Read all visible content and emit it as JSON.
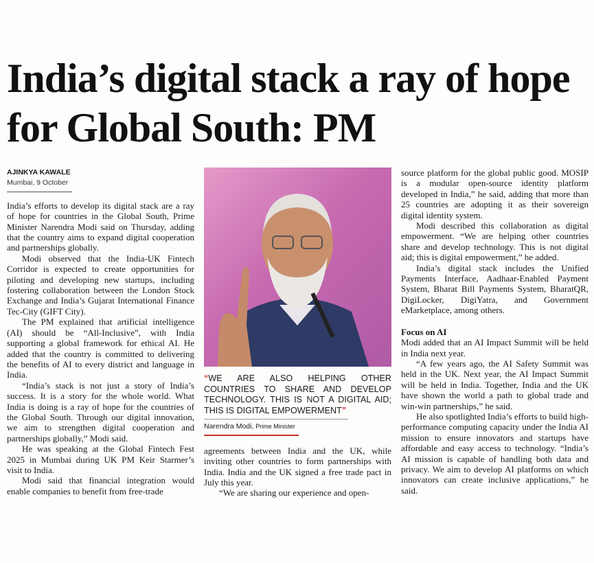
{
  "headline": "India’s digital stack a ray of hope for Global South: PM",
  "byline": {
    "author": "AJINKYA KAWALE",
    "dateline": "Mumbai, 9 October"
  },
  "photo": {
    "subject": "Narendra Modi speaking",
    "background_color": "#d27ab8"
  },
  "pull_quote": {
    "text": "WE ARE ALSO HELPING OTHER COUNTRIES TO SHARE AND DEVELOP TECHNOLOGY. THIS IS NOT A DIGITAL AID; THIS IS DIGITAL EMPOWERMENT",
    "open_mark": "“",
    "close_mark": "”",
    "speaker": "Narendra Modi,",
    "role": "Prime Minister",
    "accent_color": "#c8352a"
  },
  "columns": {
    "col1": [
      "India’s efforts to develop its digital stack are a ray of hope for countries in the Global South, Prime Minister Narendra Modi said on Thursday, adding that the country aims to expand digital cooperation and partnerships globally.",
      "Modi observed that the India-UK Fintech Corridor is expected to create opportunities for piloting and developing new startups, including fostering collaboration between the London Stock Exchange and India’s Gujarat International Finance Tec-City (GIFT City).",
      "The PM explained that artificial intelligence (AI) should be “All-Inclusive”, with India supporting a global framework for ethical AI. He added that the country is committed to delivering the benefits of AI to every district and language in India.",
      "“India’s stack is not just a story of India’s success. It is a story for the whole world. What India is doing is a ray of hope for the countries of the Global South. Through our digital innovation, we aim to strengthen digital cooperation and partnerships globally,” Modi said.",
      "He was speaking at the Global Fintech Fest 2025 in Mumbai during UK PM Keir Starmer’s visit to India.",
      "Modi said that financial integration would enable companies to benefit from free-trade"
    ],
    "col2": [
      "agreements between India and the UK, while inviting other countries to form partnerships with India. India and the UK signed a free trade pact in July this year.",
      "“We are sharing our experience and open-"
    ],
    "col3": [
      "source platform for the global public good. MOSIP is a modular open-source identity platform developed in India,” he said, adding that more than 25 countries are adopting it as their sovereign digital identity system.",
      "Modi described this collaboration as digital empowerment. “We are helping other countries share and develop technology. This is not digital aid; this is digital empowerment,” he added.",
      "India’s digital stack includes the Unified Payments Interface, Aadhaar-Enabled Payment System, Bharat Bill Payments System, BharatQR, DigiLocker, DigiYatra, and Government eMarketplace, among others."
    ],
    "subhead": "Focus on AI",
    "col3b": [
      "Modi added that an AI Impact Summit will be held in India next year.",
      "“A few years ago, the AI Safety Summit was held in the UK. Next year, the AI Impact Summit will be held in India. Together, India and the UK have shown the world a path to global trade and win-win partnerships,” he said.",
      "He also spotlighted India’s efforts to build high-performance computing capacity under the India AI mission to ensure innovators and startups have affordable and easy access to technology. “India’s AI mission is capable of handling both data and privacy. We aim to develop AI platforms on which innovators can create inclusive applications,” he said."
    ]
  }
}
